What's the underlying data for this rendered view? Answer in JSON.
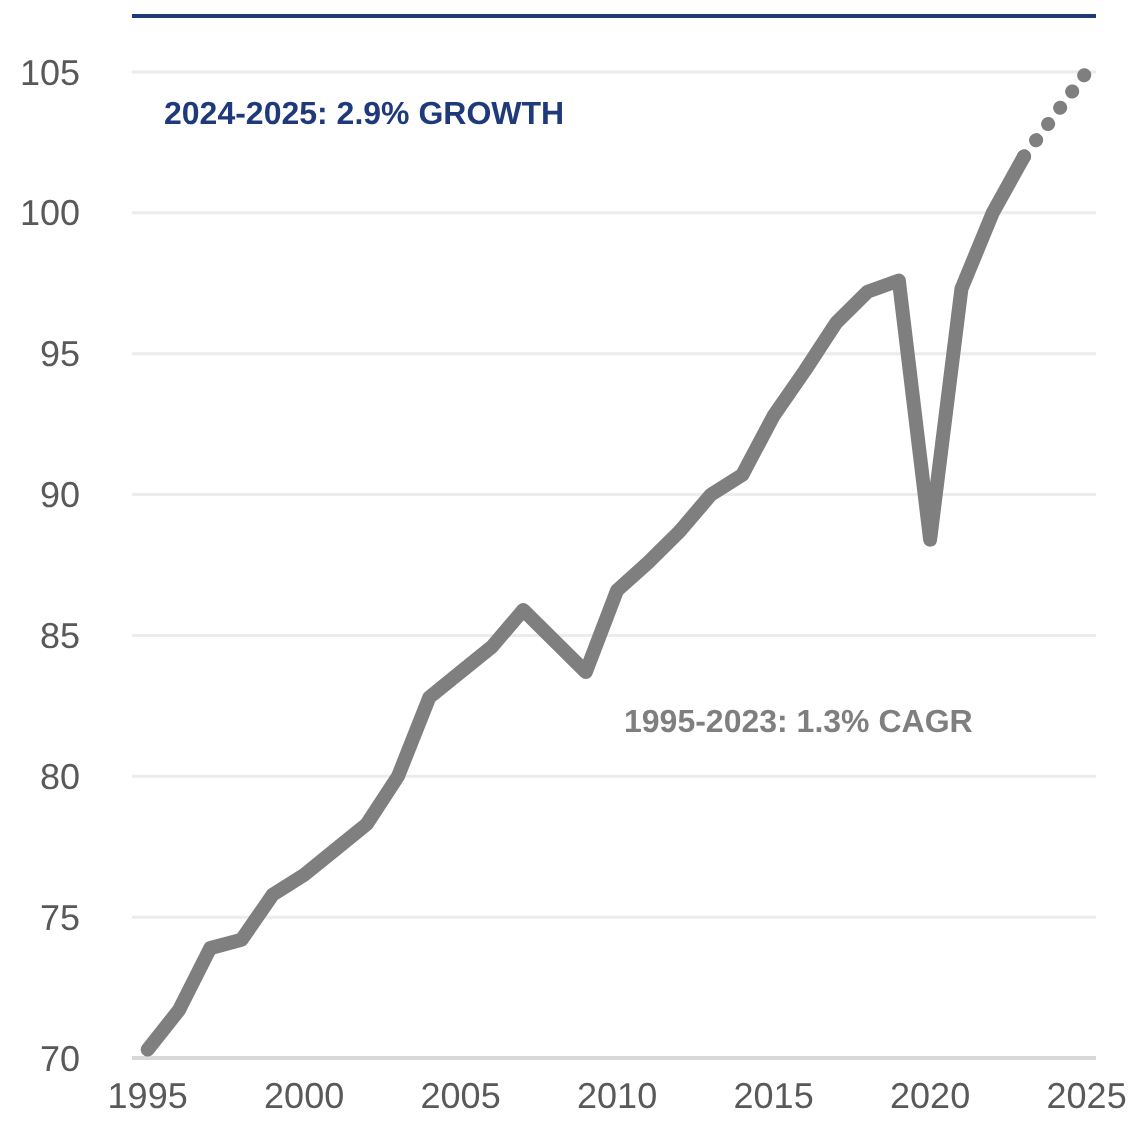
{
  "chart_data": {
    "type": "line",
    "x": [
      1995,
      1996,
      1997,
      1998,
      1999,
      2000,
      2001,
      2002,
      2003,
      2004,
      2005,
      2006,
      2007,
      2008,
      2009,
      2010,
      2011,
      2012,
      2013,
      2014,
      2015,
      2016,
      2017,
      2018,
      2019,
      2020,
      2021,
      2022,
      2023
    ],
    "series": [
      {
        "color": "#7f7f7f",
        "values": [
          70.3,
          71.7,
          73.9,
          74.2,
          75.8,
          76.5,
          77.4,
          78.3,
          80.0,
          82.8,
          83.7,
          84.6,
          85.9,
          84.8,
          83.7,
          86.6,
          87.6,
          88.7,
          90.0,
          90.7,
          92.8,
          94.4,
          96.1,
          97.2,
          97.6,
          88.4,
          97.3,
          100.0,
          102.0
        ]
      },
      {
        "color": "#7f7f7f",
        "x": [
          2023,
          2024,
          2025
        ],
        "values": [
          102.0,
          103.5,
          105.0
        ],
        "line_style": "dotted"
      }
    ],
    "annotations": [
      "2024-2025: 2.9% GROWTH",
      "1995-2023: 1.3% CAGR"
    ],
    "xlim": [
      1994.5,
      2025.3
    ],
    "xticks": [
      1995,
      2000,
      2005,
      2010,
      2015,
      2020,
      2025
    ],
    "ylim": [
      70,
      105
    ],
    "yticks": [
      70,
      75,
      80,
      85,
      90,
      95,
      100,
      105
    ],
    "grid": "y",
    "marker": "none",
    "line_style": "solid"
  }
}
